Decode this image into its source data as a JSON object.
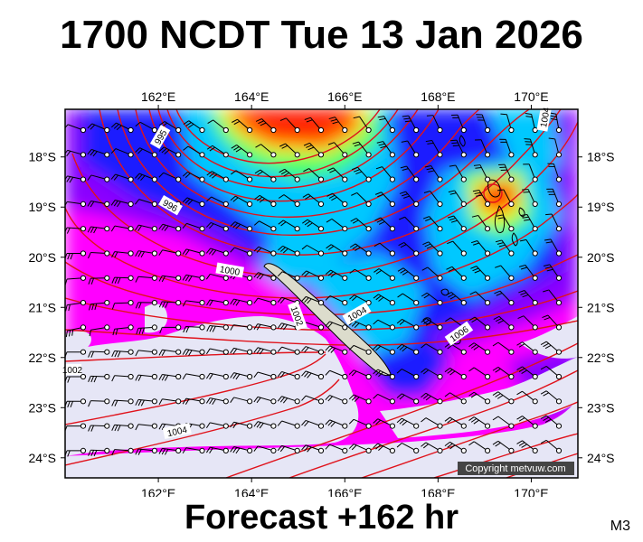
{
  "header": {
    "title": "1700 NCDT Tue 13 Jan 2026"
  },
  "footer": {
    "forecast": "Forecast +162 hr",
    "model": "M3"
  },
  "map": {
    "copyright": "Copyright metvuw.com",
    "lon_labels": [
      "162°E",
      "164°E",
      "166°E",
      "168°E",
      "170°E"
    ],
    "lon_values": [
      162,
      164,
      166,
      168,
      170
    ],
    "lat_labels": [
      "18°S",
      "19°S",
      "20°S",
      "21°S",
      "22°S",
      "23°S",
      "24°S"
    ],
    "lat_values": [
      -18,
      -19,
      -20,
      -21,
      -22,
      -23,
      -24
    ],
    "lon_range": [
      160.0,
      171.0
    ],
    "lat_range": [
      -17.05,
      -24.4
    ],
    "isobar_labels": [
      "995",
      "996",
      "1000",
      "1002",
      "1004",
      "1006",
      "1004",
      "1004",
      "1002"
    ],
    "colors": {
      "isobar": "#e0121b",
      "calm": "#e8e8f8",
      "light": "#ff00ff",
      "moderate": "#8a00ff",
      "fresh": "#1f1fff",
      "strong": "#00c8ff",
      "gale": "#ffff00",
      "storm": "#ff6a00",
      "extreme": "#ff0000"
    }
  }
}
